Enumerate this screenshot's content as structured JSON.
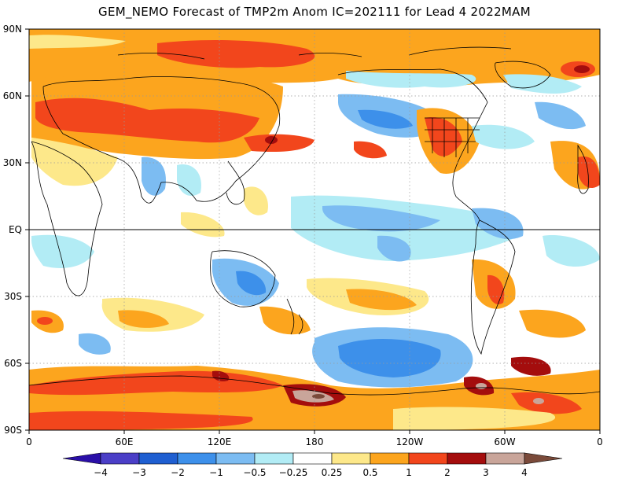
{
  "title": "GEM_NEMO Forecast of TMP2m Anom IC=202111 for Lead 4 2022MAM",
  "map": {
    "lat_labels": [
      "90N",
      "60N",
      "30N",
      "EQ",
      "30S",
      "60S",
      "90S"
    ],
    "lon_labels": [
      "0",
      "60E",
      "120E",
      "180",
      "120W",
      "60W",
      "0"
    ],
    "equator_line": true,
    "grid": "dotted"
  },
  "colorbar": {
    "labels": [
      "-4",
      "-3",
      "-2",
      "-1",
      "-0.5",
      "-0.25",
      "0.25",
      "0.5",
      "1",
      "2",
      "3",
      "4"
    ],
    "colors": [
      "#2a0fa8",
      "#4b3fc7",
      "#1f5fd1",
      "#3d90ea",
      "#7cbcf2",
      "#b2ecf5",
      "#ffffff",
      "#fde88a",
      "#fca51e",
      "#f2461c",
      "#a40d0d",
      "#c9a59a",
      "#7a4a3a"
    ]
  }
}
